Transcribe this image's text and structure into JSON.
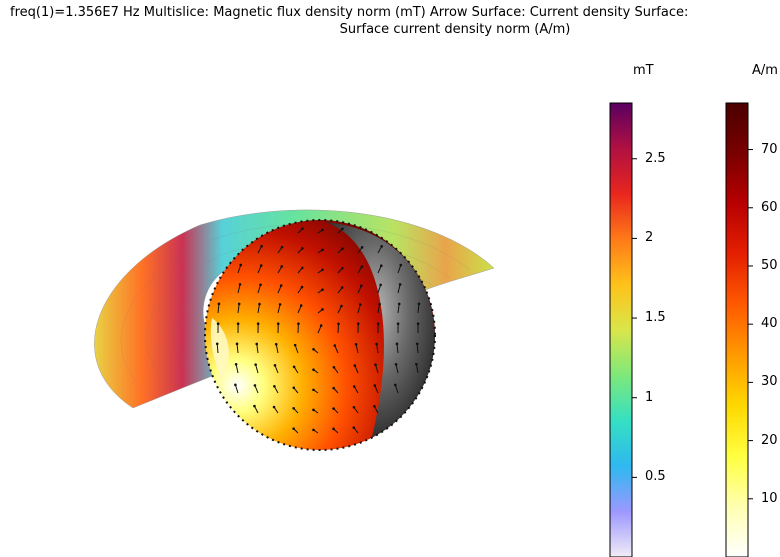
{
  "title": {
    "line1": "freq(1)=1.356E7 Hz Multislice: Magnetic flux density norm (mT)  Arrow Surface: Current density  Surface:",
    "line2": "Surface current density norm (A/m)"
  },
  "colorbars": {
    "flux": {
      "unit": "mT",
      "ticks": [
        "2.5",
        "2",
        "1.5",
        "1",
        "0.5"
      ],
      "tick_values": [
        2.5,
        2,
        1.5,
        1,
        0.5
      ],
      "range": [
        0,
        2.85
      ],
      "colors": [
        "#f2ecf6",
        "#9c98ff",
        "#2fb8f0",
        "#35e0c2",
        "#7ee87a",
        "#d9e64a",
        "#ffc21a",
        "#ff7a18",
        "#e8261e",
        "#b01042",
        "#5a0060"
      ]
    },
    "current": {
      "unit": "A/m",
      "ticks": [
        "70",
        "60",
        "50",
        "40",
        "30",
        "20",
        "10"
      ],
      "tick_values": [
        70,
        60,
        50,
        40,
        30,
        20,
        10
      ],
      "range": [
        0,
        78
      ],
      "colors": [
        "#ffffff",
        "#ffffb0",
        "#ffff40",
        "#ffd800",
        "#ff9a00",
        "#ff5a00",
        "#e42000",
        "#b80000",
        "#7a0000",
        "#4a0000"
      ]
    }
  }
}
